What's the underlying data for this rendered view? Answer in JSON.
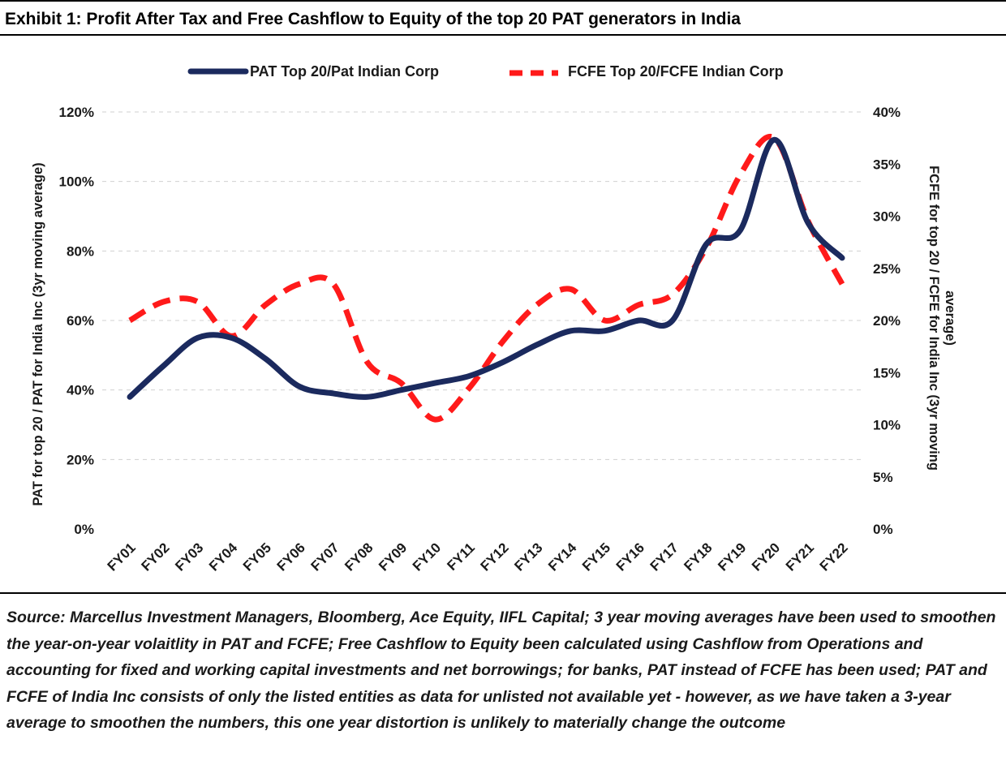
{
  "title": "Exhibit 1: Profit After Tax and Free Cashflow to Equity of the top 20 PAT generators in India",
  "source": "Source: Marcellus Investment Managers, Bloomberg, Ace Equity, IIFL Capital; 3 year moving averages have been used to smoothen the year-on-year volaitlity in PAT and FCFE; Free Cashflow to Equity been calculated using Cashflow from Operations and accounting for fixed and working capital investments and net borrowings; for banks, PAT instead of FCFE has been used; PAT  and FCFE of India Inc consists of only the listed entities as data for unlisted not available yet - however, as we have taken a 3-year average to smoothen the numbers, this one year distortion is unlikely to materially change the outcome",
  "chart_data": {
    "type": "line",
    "categories": [
      "FY01",
      "FY02",
      "FY03",
      "FY04",
      "FY05",
      "FY06",
      "FY07",
      "FY08",
      "FY09",
      "FY10",
      "FY11",
      "FY12",
      "FY13",
      "FY14",
      "FY15",
      "FY16",
      "FY17",
      "FY18",
      "FY19",
      "FY20",
      "FY21",
      "FY22"
    ],
    "series": [
      {
        "name": "PAT Top 20/Pat Indian Corp",
        "axis": "left",
        "color": "#1b2a5e",
        "style": "solid",
        "values": [
          38,
          47,
          55,
          55,
          49,
          41,
          39,
          38,
          40,
          42,
          44,
          48,
          53,
          57,
          57,
          60,
          60,
          82,
          86,
          112,
          88,
          78
        ]
      },
      {
        "name": "FCFE Top 20/FCFE Indian Corp",
        "axis": "right",
        "color": "#ff1a1a",
        "style": "dashed",
        "values": [
          20.0,
          21.8,
          21.8,
          18.5,
          21.5,
          23.5,
          23.5,
          16.0,
          14.0,
          10.5,
          13.5,
          18.0,
          21.5,
          23.0,
          20.0,
          21.5,
          22.5,
          27.0,
          34.0,
          37.5,
          29.5,
          23.5
        ]
      }
    ],
    "y_left": {
      "label": "PAT for top 20  / PAT for India Inc  (3yr moving average)",
      "ylim": [
        0,
        120
      ],
      "ticks": [
        0,
        20,
        40,
        60,
        80,
        100,
        120
      ],
      "tick_labels": [
        "0%",
        "20%",
        "40%",
        "60%",
        "80%",
        "100%",
        "120%"
      ]
    },
    "y_right": {
      "label_line1": "FCFE for top 20  / FCFE for India Inc  (3yr moving",
      "label_line2": "average)",
      "ylim": [
        0,
        40
      ],
      "ticks": [
        0,
        5,
        10,
        15,
        20,
        25,
        30,
        35,
        40
      ],
      "tick_labels": [
        "0%",
        "5%",
        "10%",
        "15%",
        "20%",
        "25%",
        "30%",
        "35%",
        "40%"
      ]
    },
    "grid": "horizontal dashed",
    "legend_placement": "top-center"
  }
}
